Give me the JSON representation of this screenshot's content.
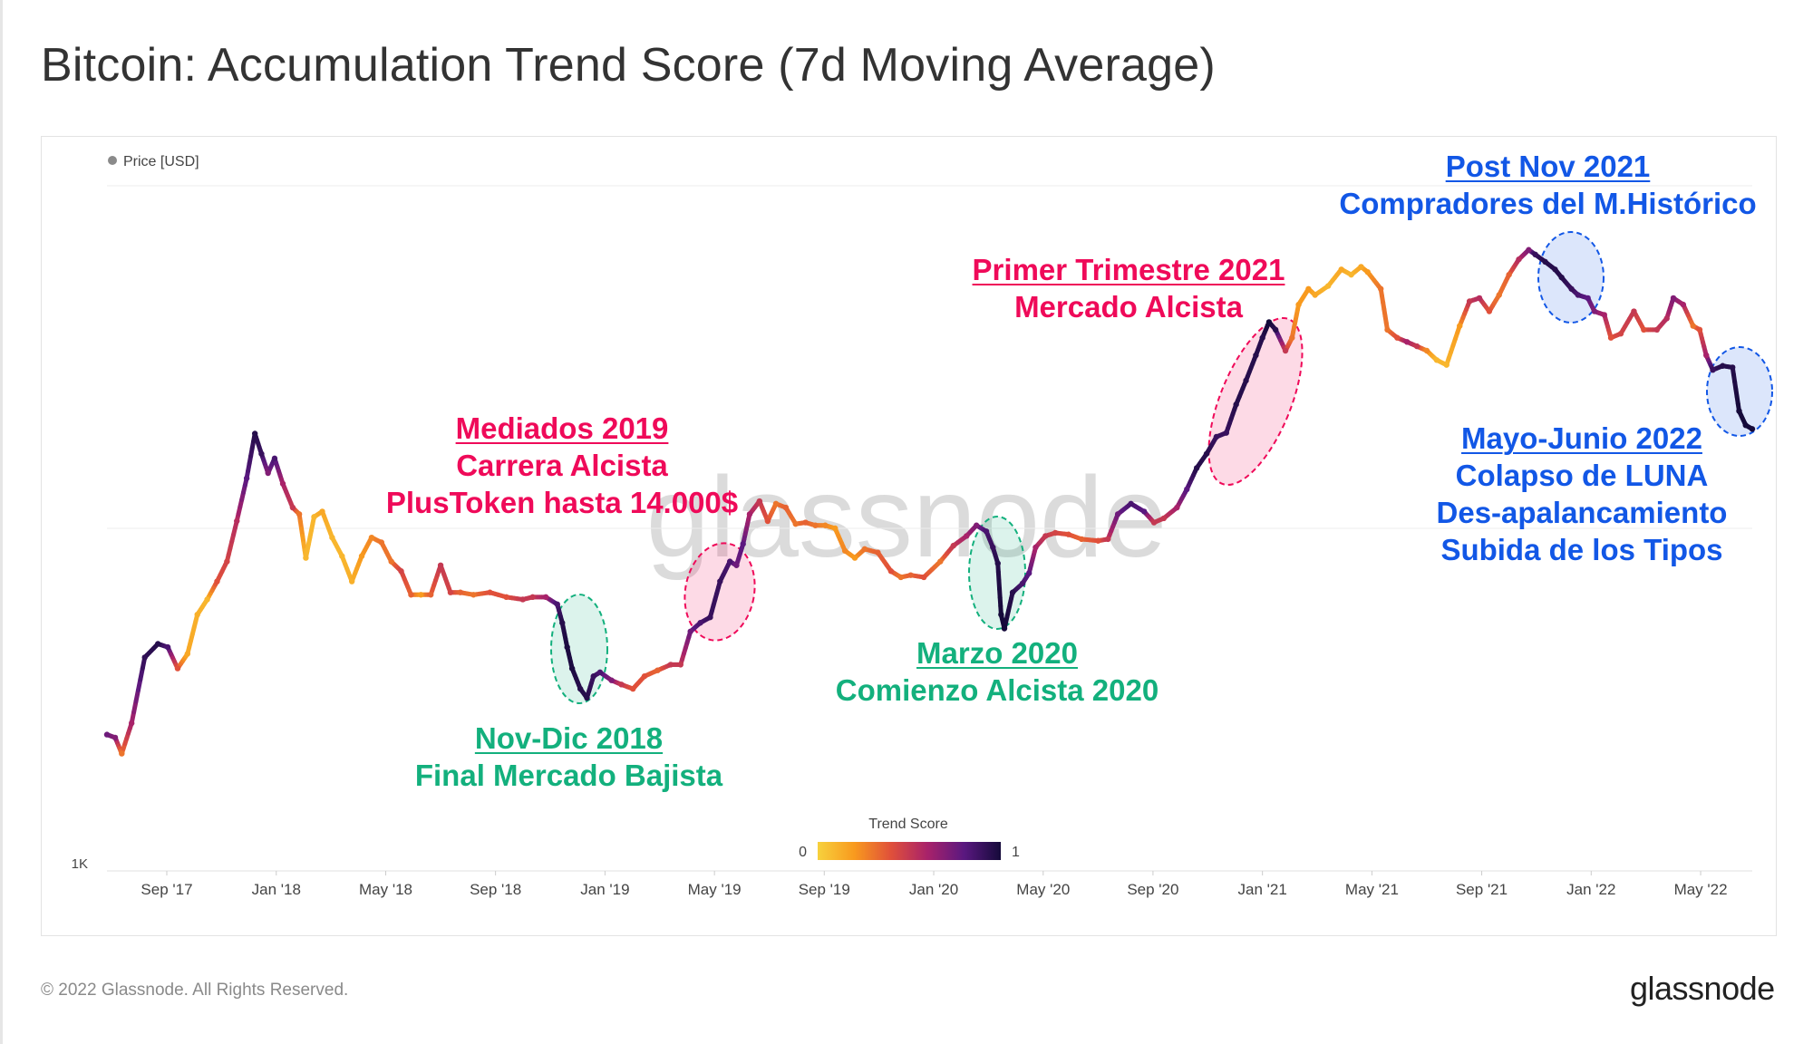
{
  "title": "Bitcoin: Accumulation Trend Score (7d Moving Average)",
  "watermark": "glassnode",
  "footer": {
    "copyright": "© 2022 Glassnode. All Rights Reserved.",
    "logo": "glassnode"
  },
  "colors": {
    "pink": "#ef0a59",
    "green": "#13b07d",
    "blue": "#1257e6",
    "axis_text": "#444444"
  },
  "chart_data": {
    "type": "line",
    "title": "Bitcoin: Accumulation Trend Score (7d Moving Average)",
    "legend": {
      "label": "Price [USD]",
      "position": "top-left"
    },
    "y_scale": "log",
    "ylim": [
      1000,
      100000
    ],
    "y_tick_labels": [
      "1K"
    ],
    "x_tick_labels": [
      "Sep '17",
      "Jan '18",
      "May '18",
      "Sep '18",
      "Jan '19",
      "May '19",
      "Sep '19",
      "Jan '20",
      "May '20",
      "Sep '20",
      "Jan '21",
      "May '21",
      "Sep '21",
      "Jan '22",
      "May '22"
    ],
    "x_tick_dates": [
      2017.667,
      2018.0,
      2018.333,
      2018.667,
      2019.0,
      2019.333,
      2019.667,
      2020.0,
      2020.333,
      2020.667,
      2021.0,
      2021.333,
      2021.667,
      2022.0,
      2022.333
    ],
    "colorbar": {
      "title": "Trend Score",
      "min_label": "0",
      "max_label": "1",
      "colors": [
        "#f7d13d",
        "#f89a1e",
        "#e0503a",
        "#a8226a",
        "#5a1880",
        "#150a3a"
      ]
    },
    "series": [
      {
        "name": "Price [USD]",
        "points": [
          [
            2017.485,
            2500,
            0.75
          ],
          [
            2017.51,
            2450,
            0.7
          ],
          [
            2017.53,
            2200,
            0.3
          ],
          [
            2017.56,
            2700,
            0.6
          ],
          [
            2017.6,
            4200,
            0.92
          ],
          [
            2017.64,
            4600,
            0.95
          ],
          [
            2017.67,
            4500,
            0.85
          ],
          [
            2017.7,
            3900,
            0.4
          ],
          [
            2017.73,
            4300,
            0.15
          ],
          [
            2017.76,
            5600,
            0.12
          ],
          [
            2017.79,
            6200,
            0.1
          ],
          [
            2017.82,
            7000,
            0.4
          ],
          [
            2017.85,
            8000,
            0.45
          ],
          [
            2017.88,
            10500,
            0.55
          ],
          [
            2017.91,
            14000,
            0.8
          ],
          [
            2017.935,
            18900,
            0.95
          ],
          [
            2017.955,
            16500,
            0.9
          ],
          [
            2017.975,
            14500,
            0.7
          ],
          [
            2017.995,
            16000,
            0.85
          ],
          [
            2018.02,
            13500,
            0.6
          ],
          [
            2018.05,
            11500,
            0.5
          ],
          [
            2018.07,
            11000,
            0.3
          ],
          [
            2018.09,
            8200,
            0.1
          ],
          [
            2018.115,
            10800,
            0.1
          ],
          [
            2018.14,
            11200,
            0.15
          ],
          [
            2018.17,
            9400,
            0.1
          ],
          [
            2018.2,
            8300,
            0.1
          ],
          [
            2018.23,
            7000,
            0.12
          ],
          [
            2018.26,
            8300,
            0.2
          ],
          [
            2018.29,
            9400,
            0.25
          ],
          [
            2018.32,
            9100,
            0.3
          ],
          [
            2018.35,
            8000,
            0.3
          ],
          [
            2018.38,
            7500,
            0.45
          ],
          [
            2018.41,
            6400,
            0.35
          ],
          [
            2018.44,
            6400,
            0.2
          ],
          [
            2018.47,
            6400,
            0.35
          ],
          [
            2018.5,
            7800,
            0.5
          ],
          [
            2018.53,
            6500,
            0.45
          ],
          [
            2018.56,
            6500,
            0.35
          ],
          [
            2018.6,
            6400,
            0.3
          ],
          [
            2018.65,
            6500,
            0.4
          ],
          [
            2018.7,
            6300,
            0.4
          ],
          [
            2018.75,
            6200,
            0.5
          ],
          [
            2018.78,
            6300,
            0.5
          ],
          [
            2018.82,
            6300,
            0.6
          ],
          [
            2018.855,
            6000,
            0.85
          ],
          [
            2018.87,
            5300,
            0.95
          ],
          [
            2018.885,
            4500,
            0.98
          ],
          [
            2018.9,
            3900,
            0.98
          ],
          [
            2018.925,
            3400,
            0.95
          ],
          [
            2018.945,
            3200,
            0.95
          ],
          [
            2018.965,
            3700,
            0.9
          ],
          [
            2018.985,
            3800,
            0.85
          ],
          [
            2019.02,
            3600,
            0.7
          ],
          [
            2019.05,
            3500,
            0.5
          ],
          [
            2019.085,
            3400,
            0.4
          ],
          [
            2019.12,
            3700,
            0.4
          ],
          [
            2019.16,
            3850,
            0.35
          ],
          [
            2019.2,
            4000,
            0.5
          ],
          [
            2019.23,
            4000,
            0.5
          ],
          [
            2019.26,
            5000,
            0.75
          ],
          [
            2019.29,
            5300,
            0.85
          ],
          [
            2019.32,
            5500,
            0.9
          ],
          [
            2019.35,
            7000,
            0.9
          ],
          [
            2019.38,
            8000,
            0.85
          ],
          [
            2019.4,
            7800,
            0.75
          ],
          [
            2019.42,
            9000,
            0.8
          ],
          [
            2019.44,
            11000,
            0.6
          ],
          [
            2019.47,
            12000,
            0.5
          ],
          [
            2019.495,
            10500,
            0.4
          ],
          [
            2019.52,
            11800,
            0.3
          ],
          [
            2019.55,
            11500,
            0.35
          ],
          [
            2019.58,
            10300,
            0.3
          ],
          [
            2019.61,
            10400,
            0.35
          ],
          [
            2019.64,
            10200,
            0.3
          ],
          [
            2019.67,
            10200,
            0.25
          ],
          [
            2019.7,
            10000,
            0.2
          ],
          [
            2019.73,
            8600,
            0.25
          ],
          [
            2019.76,
            8200,
            0.2
          ],
          [
            2019.79,
            8700,
            0.3
          ],
          [
            2019.83,
            8500,
            0.35
          ],
          [
            2019.87,
            7500,
            0.4
          ],
          [
            2019.9,
            7200,
            0.3
          ],
          [
            2019.93,
            7300,
            0.35
          ],
          [
            2019.97,
            7200,
            0.4
          ],
          [
            2020.02,
            8000,
            0.3
          ],
          [
            2020.06,
            8900,
            0.5
          ],
          [
            2020.1,
            9500,
            0.6
          ],
          [
            2020.13,
            10200,
            0.7
          ],
          [
            2020.16,
            9800,
            0.85
          ],
          [
            2020.18,
            8800,
            0.9
          ],
          [
            2020.195,
            7900,
            0.95
          ],
          [
            2020.205,
            5600,
            1.0
          ],
          [
            2020.215,
            5100,
            1.0
          ],
          [
            2020.24,
            6500,
            0.95
          ],
          [
            2020.27,
            6900,
            0.85
          ],
          [
            2020.29,
            7400,
            0.8
          ],
          [
            2020.31,
            8800,
            0.6
          ],
          [
            2020.34,
            9500,
            0.5
          ],
          [
            2020.37,
            9700,
            0.45
          ],
          [
            2020.41,
            9600,
            0.4
          ],
          [
            2020.45,
            9300,
            0.35
          ],
          [
            2020.5,
            9200,
            0.4
          ],
          [
            2020.53,
            9300,
            0.5
          ],
          [
            2020.56,
            11000,
            0.75
          ],
          [
            2020.6,
            11800,
            0.85
          ],
          [
            2020.64,
            11200,
            0.8
          ],
          [
            2020.67,
            10400,
            0.5
          ],
          [
            2020.7,
            10700,
            0.5
          ],
          [
            2020.74,
            11500,
            0.6
          ],
          [
            2020.77,
            13000,
            0.8
          ],
          [
            2020.8,
            15000,
            0.95
          ],
          [
            2020.83,
            16500,
            0.95
          ],
          [
            2020.86,
            18500,
            0.9
          ],
          [
            2020.89,
            19000,
            0.9
          ],
          [
            2020.92,
            23000,
            0.95
          ],
          [
            2020.95,
            27000,
            0.95
          ],
          [
            2020.98,
            32000,
            0.95
          ],
          [
            2021.0,
            36000,
            0.95
          ],
          [
            2021.02,
            40000,
            1.0
          ],
          [
            2021.04,
            38000,
            0.95
          ],
          [
            2021.07,
            33000,
            0.5
          ],
          [
            2021.09,
            36000,
            0.3
          ],
          [
            2021.11,
            45000,
            0.2
          ],
          [
            2021.14,
            50000,
            0.2
          ],
          [
            2021.16,
            48000,
            0.15
          ],
          [
            2021.2,
            51000,
            0.1
          ],
          [
            2021.24,
            57000,
            0.15
          ],
          [
            2021.27,
            55000,
            0.1
          ],
          [
            2021.3,
            58000,
            0.15
          ],
          [
            2021.32,
            56000,
            0.2
          ],
          [
            2021.36,
            50000,
            0.3
          ],
          [
            2021.38,
            38000,
            0.3
          ],
          [
            2021.41,
            36000,
            0.4
          ],
          [
            2021.44,
            35000,
            0.6
          ],
          [
            2021.47,
            34000,
            0.5
          ],
          [
            2021.5,
            33000,
            0.25
          ],
          [
            2021.53,
            31000,
            0.1
          ],
          [
            2021.56,
            30000,
            0.1
          ],
          [
            2021.6,
            39000,
            0.2
          ],
          [
            2021.63,
            46000,
            0.5
          ],
          [
            2021.66,
            47000,
            0.55
          ],
          [
            2021.69,
            43000,
            0.4
          ],
          [
            2021.72,
            48000,
            0.3
          ],
          [
            2021.75,
            55000,
            0.35
          ],
          [
            2021.78,
            61000,
            0.55
          ],
          [
            2021.81,
            65000,
            0.7
          ],
          [
            2021.83,
            63000,
            0.9
          ],
          [
            2021.86,
            60000,
            0.95
          ],
          [
            2021.89,
            57000,
            0.95
          ],
          [
            2021.91,
            54000,
            0.95
          ],
          [
            2021.94,
            50000,
            0.9
          ],
          [
            2021.96,
            48000,
            0.85
          ],
          [
            2021.99,
            47000,
            0.8
          ],
          [
            2022.01,
            43000,
            0.7
          ],
          [
            2022.04,
            42000,
            0.6
          ],
          [
            2022.06,
            36000,
            0.4
          ],
          [
            2022.09,
            37000,
            0.45
          ],
          [
            2022.13,
            43000,
            0.5
          ],
          [
            2022.16,
            38000,
            0.4
          ],
          [
            2022.2,
            38000,
            0.5
          ],
          [
            2022.23,
            41000,
            0.55
          ],
          [
            2022.25,
            47000,
            0.7
          ],
          [
            2022.28,
            45000,
            0.6
          ],
          [
            2022.31,
            39000,
            0.3
          ],
          [
            2022.33,
            38000,
            0.4
          ],
          [
            2022.35,
            32000,
            0.6
          ],
          [
            2022.37,
            29000,
            0.9
          ],
          [
            2022.4,
            29800,
            0.95
          ],
          [
            2022.43,
            29500,
            0.95
          ],
          [
            2022.45,
            22000,
            1.0
          ],
          [
            2022.47,
            20000,
            1.0
          ],
          [
            2022.49,
            19500,
            1.0
          ]
        ]
      }
    ],
    "annotations": [
      {
        "id": "mid2019",
        "lines": [
          "Mediados 2019",
          "Carrera Alcista",
          "PlusToken hasta 14.000$"
        ],
        "color": "pink"
      },
      {
        "id": "q1-2021",
        "lines": [
          "Primer Trimestre 2021",
          "Mercado Alcista"
        ],
        "color": "pink"
      },
      {
        "id": "nov-dic-2018",
        "lines": [
          "Nov-Dic 2018",
          "Final Mercado Bajista"
        ],
        "color": "green"
      },
      {
        "id": "marzo-2020",
        "lines": [
          "Marzo 2020",
          "Comienzo Alcista 2020"
        ],
        "color": "green"
      },
      {
        "id": "post-nov-2021",
        "lines": [
          "Post Nov 2021",
          "Compradores del M.Histórico"
        ],
        "color": "blue"
      },
      {
        "id": "mayo-junio-2022",
        "lines": [
          "Mayo-Junio 2022",
          "Colapso de LUNA",
          "Des-apalancamiento",
          "Subida de los Tipos"
        ],
        "color": "blue"
      }
    ]
  }
}
